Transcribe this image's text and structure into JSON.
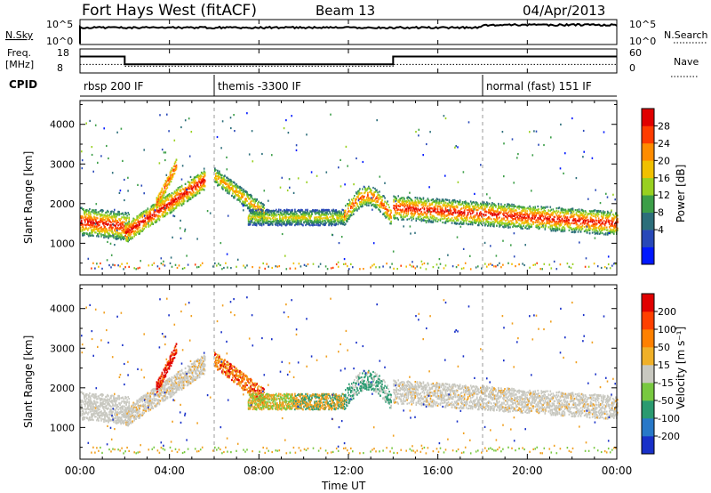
{
  "header": {
    "station": "Fort Hays West (fitACF)",
    "beam": "Beam 13",
    "date": "04/Apr/2013"
  },
  "status_panels": {
    "nsky_label": "N.Sky",
    "nsky_ticks": [
      "10^5",
      "10^0"
    ],
    "nsearch_label": "N.Search",
    "nsearch_ticks": [
      "10^5",
      "10^0"
    ],
    "freq_label_1": "Freq.",
    "freq_label_2": "[MHz]",
    "freq_ticks": [
      "18",
      "8"
    ],
    "nave_label": "Nave",
    "nave_ticks": [
      "60",
      "0"
    ],
    "cpid_label": "CPID",
    "cpid_segments": [
      {
        "label": "rbsp 200 IF",
        "start": 0,
        "end": 6
      },
      {
        "label": "themis -3300 IF",
        "start": 6,
        "end": 18
      },
      {
        "label": "normal (fast) 151 IF",
        "start": 18,
        "end": 24
      }
    ],
    "freq_steps": [
      {
        "start": 0,
        "end": 2.0,
        "value": 15.6
      },
      {
        "start": 2.0,
        "end": 14.0,
        "value": 11.0
      },
      {
        "start": 14.0,
        "end": 24,
        "value": 15.6
      }
    ],
    "nave_steps": [
      {
        "start": 0,
        "end": 2.0,
        "value": 23
      },
      {
        "start": 2.0,
        "end": 14.0,
        "value": 17
      },
      {
        "start": 14.0,
        "end": 24,
        "value": 23
      }
    ]
  },
  "chart_data": [
    {
      "type": "heatmap",
      "name": "power",
      "ylabel": "Slant Range [km]",
      "xlabel": "Time UT",
      "ylim": [
        200,
        4600
      ],
      "xlim": [
        0,
        24
      ],
      "yticks": [
        "4000",
        "3000",
        "2000",
        "1000"
      ],
      "xticks": [
        "00:00",
        "04:00",
        "08:00",
        "12:00",
        "16:00",
        "20:00",
        "00:00"
      ],
      "colorbar": {
        "label": "Power [dB]",
        "ticks": [
          "28",
          "24",
          "20",
          "16",
          "12",
          "8",
          "4"
        ],
        "colors": [
          "#0018ff",
          "#2848b8",
          "#2c6e7a",
          "#3c9e48",
          "#98d020",
          "#f0c000",
          "#ff8c00",
          "#ff3c00",
          "#e00000"
        ]
      }
    },
    {
      "type": "heatmap",
      "name": "velocity",
      "ylabel": "Slant Range [km]",
      "xlabel": "Time UT",
      "ylim": [
        200,
        4600
      ],
      "xlim": [
        0,
        24
      ],
      "yticks": [
        "4000",
        "3000",
        "2000",
        "1000"
      ],
      "xticks": [
        "00:00",
        "04:00",
        "08:00",
        "12:00",
        "16:00",
        "20:00",
        "00:00"
      ],
      "colorbar": {
        "label": "Velocity [m s⁻¹]",
        "ticks": [
          "200",
          "100",
          "50",
          "15",
          "-15",
          "-50",
          "-100",
          "-200"
        ],
        "colors": [
          "#1830c8",
          "#2878c8",
          "#2a9a70",
          "#78c840",
          "#c8c8c0",
          "#f0b028",
          "#ff8000",
          "#ff4000",
          "#e00000"
        ]
      }
    }
  ],
  "time_axis_label": "Time UT"
}
